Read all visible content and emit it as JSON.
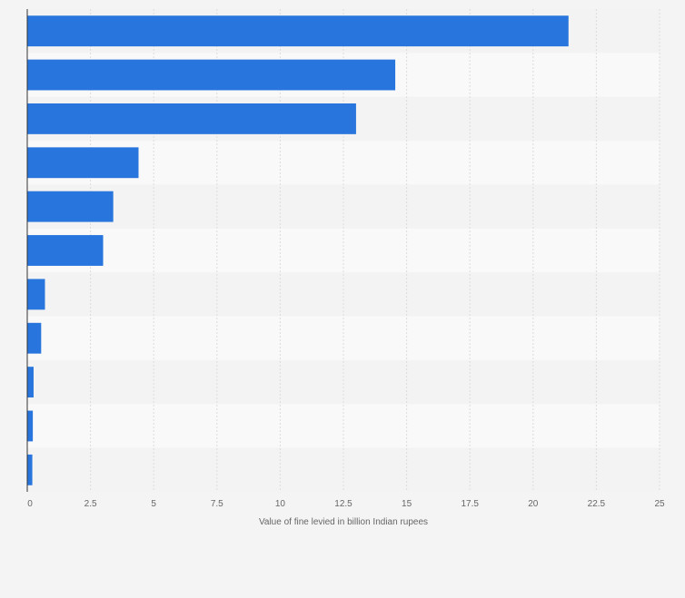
{
  "chart_data": {
    "type": "bar",
    "orientation": "horizontal",
    "title": "",
    "xlabel": "Value of fine levied in billion Indian rupees",
    "ylabel": "",
    "xlim": [
      0,
      25
    ],
    "ticks": [
      0,
      2.5,
      5,
      7.5,
      10,
      12.5,
      15,
      17.5,
      20,
      22.5,
      25
    ],
    "tick_labels": [
      "0",
      "2.5",
      "5",
      "7.5",
      "10",
      "12.5",
      "15",
      "17.5",
      "20",
      "22.5",
      "25"
    ],
    "categories": [
      "",
      "",
      "",
      "",
      "",
      "",
      "",
      "",
      "",
      "",
      ""
    ],
    "values": [
      21.4,
      14.55,
      13.0,
      4.4,
      3.4,
      3.0,
      0.7,
      0.55,
      0.25,
      0.22,
      0.2
    ],
    "grid": true,
    "bar_color": "#2876dd",
    "band_colors": [
      "#f3f3f3",
      "#f9f9f9"
    ],
    "grid_color": "#dcdcdc",
    "axis_color": "#333333"
  }
}
